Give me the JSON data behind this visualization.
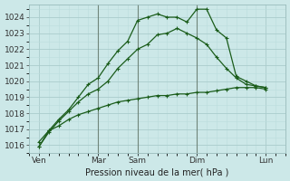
{
  "xlabel": "Pression niveau de la mer( hPa )",
  "bg_color": "#cce8e8",
  "grid_major_color": "#aacccc",
  "grid_minor_color": "#bbdddd",
  "vline_color": "#556655",
  "line_color": "#1a5c1a",
  "ylim": [
    1015.5,
    1024.8
  ],
  "yticks": [
    1016,
    1017,
    1018,
    1019,
    1020,
    1021,
    1022,
    1023,
    1024
  ],
  "xlim": [
    0,
    13.0
  ],
  "day_labels": [
    "Ven",
    "Mar",
    "Sam",
    "Dim",
    "Lun"
  ],
  "day_positions": [
    0.5,
    3.5,
    5.5,
    8.5,
    12.0
  ],
  "vline_positions": [
    3.5,
    5.5,
    8.5
  ],
  "line1_x": [
    0.5,
    1.0,
    1.5,
    2.0,
    2.5,
    3.0,
    3.5,
    4.0,
    4.5,
    5.0,
    5.5,
    6.0,
    6.5,
    7.0,
    7.5,
    8.0,
    8.5,
    9.0,
    9.5,
    10.0,
    10.5,
    11.0,
    11.5,
    12.0
  ],
  "line1_y": [
    1015.9,
    1016.8,
    1017.5,
    1018.1,
    1018.7,
    1019.2,
    1019.5,
    1020.0,
    1020.8,
    1021.4,
    1022.0,
    1022.3,
    1022.9,
    1023.0,
    1023.3,
    1023.0,
    1022.7,
    1022.3,
    1021.5,
    1020.8,
    1020.2,
    1019.8,
    1019.7,
    1019.6
  ],
  "line2_x": [
    0.5,
    1.0,
    1.5,
    2.0,
    2.5,
    3.0,
    3.5,
    4.0,
    4.5,
    5.0,
    5.5,
    6.0,
    6.5,
    7.0,
    7.5,
    8.0,
    8.5,
    9.0,
    9.5,
    10.0,
    10.5,
    11.0,
    11.5,
    12.0
  ],
  "line2_y": [
    1015.9,
    1016.9,
    1017.6,
    1018.2,
    1019.0,
    1019.8,
    1020.2,
    1021.1,
    1021.9,
    1022.5,
    1023.8,
    1024.0,
    1024.2,
    1024.0,
    1024.0,
    1023.7,
    1024.5,
    1024.5,
    1023.2,
    1022.7,
    1020.3,
    1020.0,
    1019.7,
    1019.6
  ],
  "line3_x": [
    0.5,
    1.0,
    1.5,
    2.0,
    2.5,
    3.0,
    3.5,
    4.0,
    4.5,
    5.0,
    5.5,
    6.0,
    6.5,
    7.0,
    7.5,
    8.0,
    8.5,
    9.0,
    9.5,
    10.0,
    10.5,
    11.0,
    11.5,
    12.0
  ],
  "line3_y": [
    1016.2,
    1016.9,
    1017.2,
    1017.6,
    1017.9,
    1018.1,
    1018.3,
    1018.5,
    1018.7,
    1018.8,
    1018.9,
    1019.0,
    1019.1,
    1019.1,
    1019.2,
    1019.2,
    1019.3,
    1019.3,
    1019.4,
    1019.5,
    1019.6,
    1019.6,
    1019.6,
    1019.5
  ]
}
